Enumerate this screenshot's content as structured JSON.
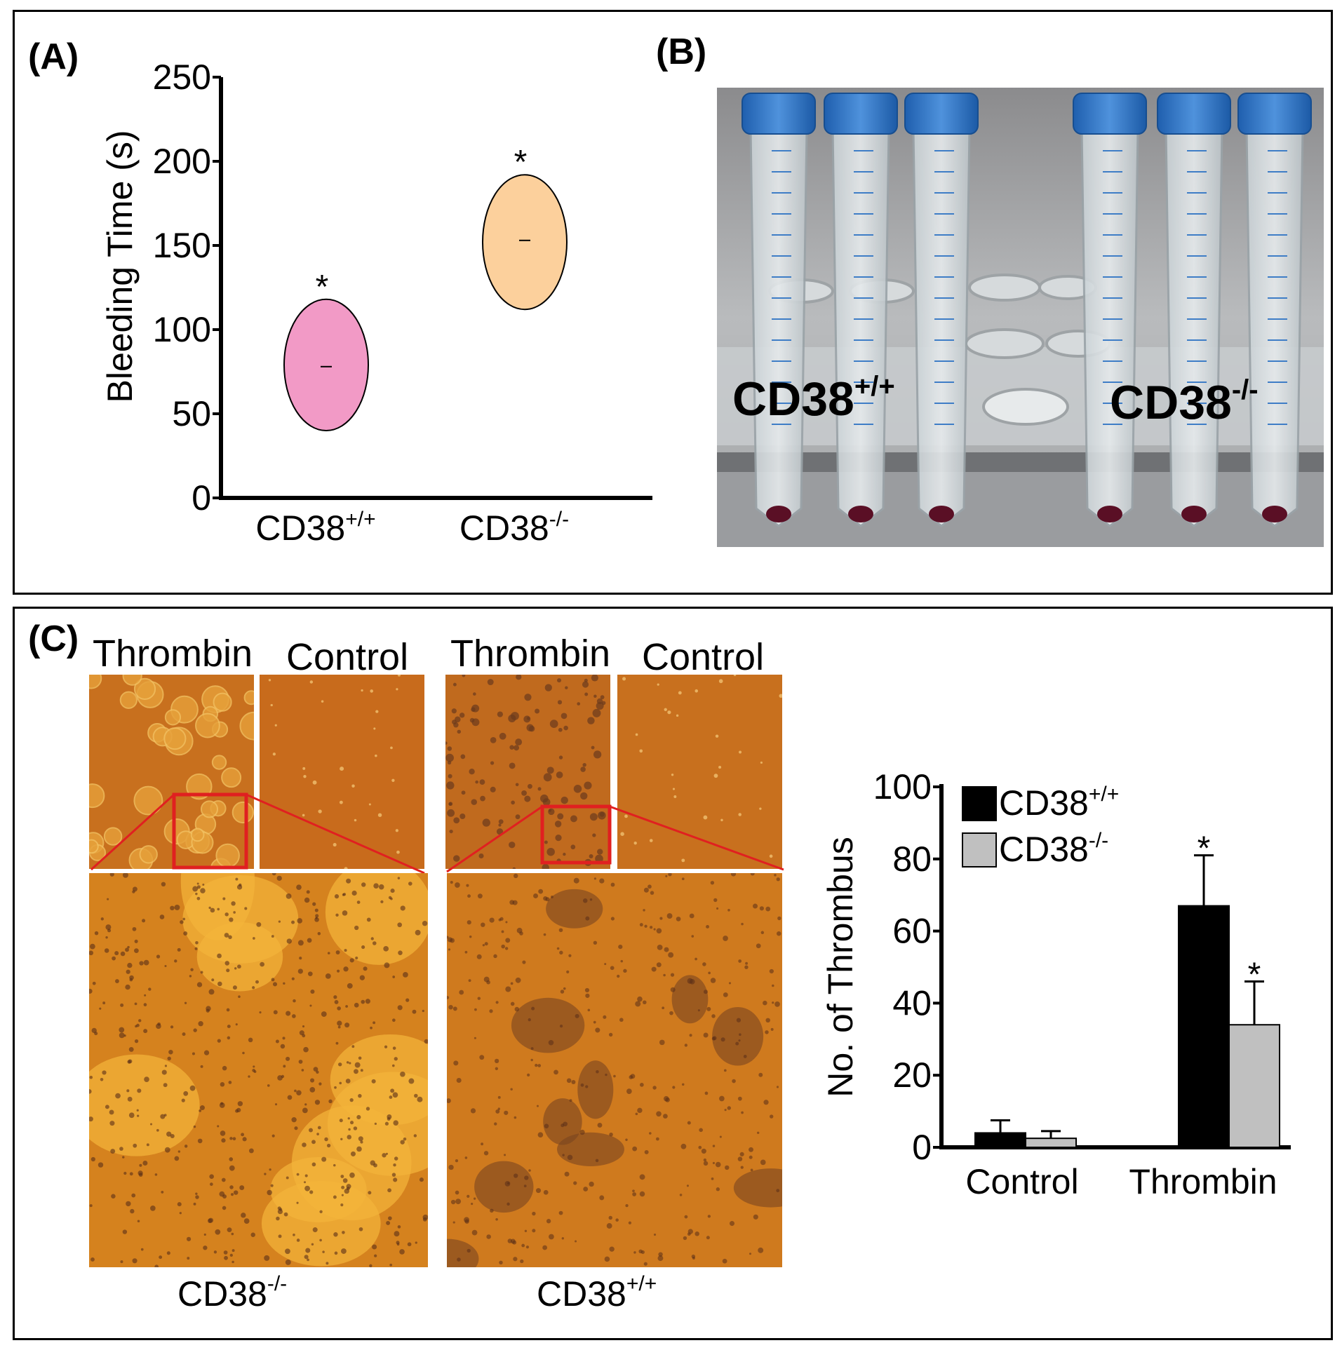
{
  "panels": {
    "a_label": "(A)",
    "b_label": "(B)",
    "c_label": "(C)"
  },
  "chart_a": {
    "ylabel": "Bleeding Time (s)",
    "yticks": [
      "0",
      "50",
      "100",
      "150",
      "200",
      "250"
    ],
    "categories": [
      {
        "base": "CD38",
        "sup": "+/+"
      },
      {
        "base": "CD38",
        "sup": "-/-"
      }
    ],
    "star": "*"
  },
  "tubes_photo": {
    "left_label_base": "CD38",
    "left_label_sup": "+/+",
    "right_label_base": "CD38",
    "right_label_sup": "-/-"
  },
  "micrographs": {
    "thrombin_1": "Thrombin",
    "control_1": "Control",
    "thrombin_2": "Thrombin",
    "control_2": "Control",
    "bottom_left_base": "CD38",
    "bottom_left_sup": "-/-",
    "bottom_right_base": "CD38",
    "bottom_right_sup": "+/+"
  },
  "chart_data": [
    {
      "type": "scatter",
      "title": "",
      "xlabel": "",
      "ylabel": "Bleeding Time (s)",
      "ylim": [
        0,
        250
      ],
      "categories": [
        "CD38+/+",
        "CD38-/-"
      ],
      "series": [
        {
          "name": "CD38+/+",
          "mean": 78,
          "low": 40,
          "high": 118,
          "color": "#f29ac6",
          "significant": true
        },
        {
          "name": "CD38-/-",
          "mean": 153,
          "low": 112,
          "high": 192,
          "color": "#fcd09c",
          "significant": true
        }
      ]
    },
    {
      "type": "bar",
      "title": "",
      "xlabel": "",
      "ylabel": "No. of Thrombus",
      "ylim": [
        0,
        100
      ],
      "yticks": [
        "0",
        "20",
        "40",
        "60",
        "80",
        "100"
      ],
      "categories": [
        "Control",
        "Thrombin"
      ],
      "series": [
        {
          "name": "CD38+/+",
          "values": [
            4,
            67
          ],
          "errors": [
            3.5,
            14
          ],
          "color": "#000000",
          "significant": [
            false,
            true
          ]
        },
        {
          "name": "CD38-/-",
          "values": [
            2.5,
            34
          ],
          "errors": [
            2,
            12
          ],
          "color": "#c0c0c0",
          "significant": [
            false,
            true
          ]
        }
      ],
      "legend": "top-left",
      "star": "*"
    }
  ]
}
